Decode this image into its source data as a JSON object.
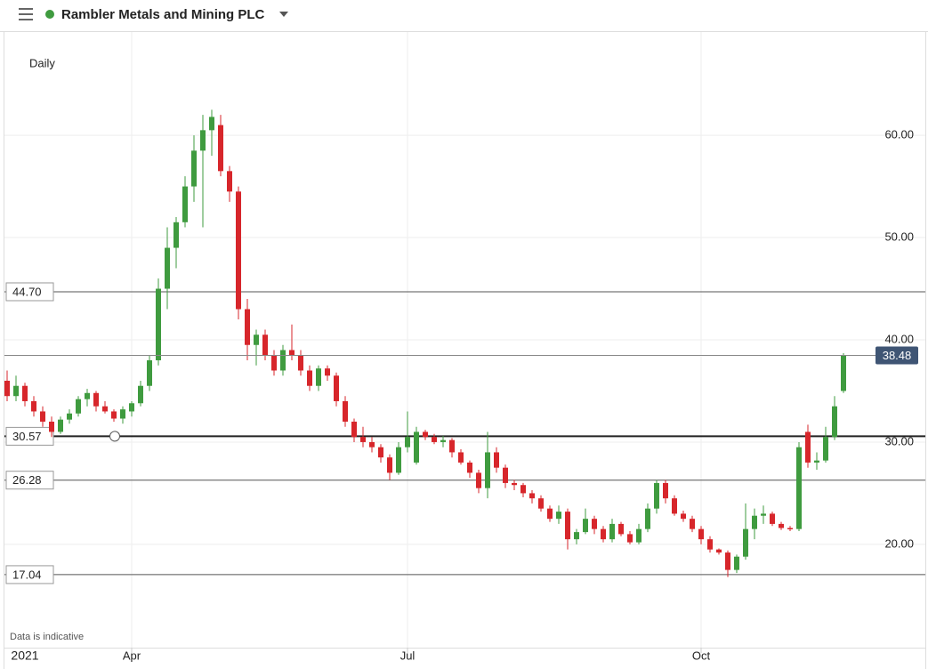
{
  "chart_data": {
    "type": "candlestick",
    "title": "Rambler Metals and Mining PLC",
    "interval": "Daily",
    "note": "Data is indicative",
    "categories": [
      null,
      null,
      "2021",
      null,
      null,
      null,
      null,
      null,
      null,
      null,
      null,
      null,
      null,
      null,
      "Apr",
      null,
      null,
      null,
      null,
      null,
      null,
      null,
      null,
      null,
      null,
      null,
      null,
      null,
      null,
      null,
      null,
      null,
      null,
      null,
      null,
      null,
      null,
      null,
      null,
      null,
      null,
      null,
      null,
      null,
      null,
      "Jul",
      null,
      null,
      null,
      null,
      null,
      null,
      null,
      null,
      null,
      null,
      null,
      null,
      null,
      null,
      null,
      null,
      null,
      null,
      null,
      null,
      null,
      null,
      null,
      null,
      null,
      null,
      null,
      null,
      null,
      null,
      null,
      null,
      "Oct",
      null,
      null,
      null,
      null,
      null,
      null,
      null,
      null,
      null,
      null,
      null,
      null,
      null,
      null,
      null,
      null
    ],
    "ohlc": [
      [
        36,
        37,
        34,
        34.5
      ],
      [
        34.5,
        36.5,
        34,
        35.5
      ],
      [
        35.5,
        35.8,
        33.5,
        34
      ],
      [
        34,
        34.5,
        32.5,
        33
      ],
      [
        33,
        33.5,
        31.5,
        32
      ],
      [
        32,
        32.5,
        30.5,
        31
      ],
      [
        31,
        32.5,
        30.8,
        32.2
      ],
      [
        32.2,
        33.2,
        31.8,
        32.8
      ],
      [
        32.8,
        34.5,
        32.5,
        34.2
      ],
      [
        34.2,
        35.2,
        33.5,
        34.8
      ],
      [
        34.8,
        35,
        33,
        33.5
      ],
      [
        33.5,
        34,
        32.8,
        33
      ],
      [
        33,
        33.2,
        32,
        32.3
      ],
      [
        32.3,
        33.5,
        31.8,
        33.2
      ],
      [
        33,
        34,
        32.5,
        33.8
      ],
      [
        33.8,
        36,
        33.5,
        35.5
      ],
      [
        35.5,
        38.5,
        35,
        38
      ],
      [
        38,
        46,
        37.5,
        45
      ],
      [
        45,
        51,
        43,
        49
      ],
      [
        49,
        52,
        47,
        51.5
      ],
      [
        51.5,
        56,
        51,
        55
      ],
      [
        55,
        60,
        53.5,
        58.5
      ],
      [
        58.5,
        62,
        51,
        60.5
      ],
      [
        60.5,
        62.5,
        58,
        61.8
      ],
      [
        61,
        62,
        56,
        56.5
      ],
      [
        56.5,
        57,
        53.5,
        54.5
      ],
      [
        54.5,
        55,
        42,
        43
      ],
      [
        43,
        44,
        38,
        39.5
      ],
      [
        39.5,
        41,
        37.5,
        40.5
      ],
      [
        40.5,
        41,
        38,
        38.5
      ],
      [
        38.5,
        39,
        36.5,
        37
      ],
      [
        37,
        39.5,
        36.5,
        39
      ],
      [
        39,
        41.5,
        38,
        38.5
      ],
      [
        38.5,
        39,
        36.5,
        37
      ],
      [
        37,
        37.5,
        35,
        35.5
      ],
      [
        35.5,
        37.5,
        35,
        37.2
      ],
      [
        37.2,
        37.5,
        36,
        36.5
      ],
      [
        36.5,
        36.8,
        33.5,
        34
      ],
      [
        34,
        34.5,
        31.5,
        32
      ],
      [
        32,
        32.3,
        30,
        30.5
      ],
      [
        30.5,
        31.5,
        29.5,
        30
      ],
      [
        30,
        30.5,
        29,
        29.5
      ],
      [
        29.5,
        29.8,
        28,
        28.5
      ],
      [
        28.5,
        28.8,
        26.3,
        27
      ],
      [
        27,
        30,
        26.8,
        29.5
      ],
      [
        29.5,
        33,
        29,
        30.5
      ],
      [
        28,
        31.5,
        27.8,
        31
      ],
      [
        31,
        31.2,
        30.2,
        30.5
      ],
      [
        30.5,
        30.8,
        29.8,
        30
      ],
      [
        30,
        30.6,
        29.5,
        30.2
      ],
      [
        30.2,
        30.4,
        28.5,
        29
      ],
      [
        29,
        29.3,
        27.8,
        28
      ],
      [
        28,
        28.2,
        26.5,
        27
      ],
      [
        27,
        27.3,
        25,
        25.5
      ],
      [
        25.5,
        31,
        24.5,
        29
      ],
      [
        29,
        29.5,
        27,
        27.5
      ],
      [
        27.5,
        27.8,
        25.5,
        26
      ],
      [
        26,
        26.3,
        25.3,
        25.8
      ],
      [
        25.8,
        26,
        24.6,
        25
      ],
      [
        25,
        25.3,
        24,
        24.5
      ],
      [
        24.5,
        24.8,
        23.2,
        23.5
      ],
      [
        23.5,
        23.8,
        22.2,
        22.5
      ],
      [
        22.5,
        23.8,
        22,
        23.2
      ],
      [
        23.2,
        23.5,
        19.5,
        20.5
      ],
      [
        20.5,
        21.5,
        20,
        21.2
      ],
      [
        21.2,
        23.5,
        21,
        22.5
      ],
      [
        22.5,
        22.8,
        21,
        21.5
      ],
      [
        21.5,
        21.8,
        20.2,
        20.5
      ],
      [
        20.5,
        22.5,
        20.2,
        22
      ],
      [
        22,
        22.2,
        20.8,
        21
      ],
      [
        21,
        21.3,
        20,
        20.2
      ],
      [
        20.2,
        22,
        20,
        21.5
      ],
      [
        21.5,
        24,
        21.2,
        23.5
      ],
      [
        23.5,
        26.3,
        23,
        26
      ],
      [
        26,
        26.3,
        24,
        24.5
      ],
      [
        24.5,
        24.8,
        22.8,
        23
      ],
      [
        23,
        23.3,
        22.2,
        22.5
      ],
      [
        22.5,
        22.8,
        21.2,
        21.5
      ],
      [
        21.5,
        21.8,
        20,
        20.5
      ],
      [
        20.5,
        20.8,
        19.2,
        19.5
      ],
      [
        19.5,
        19.6,
        19,
        19.2
      ],
      [
        19.2,
        19.4,
        16.8,
        17.5
      ],
      [
        17.5,
        19,
        17.2,
        18.8
      ],
      [
        18.8,
        24,
        18.5,
        21.5
      ],
      [
        21.5,
        23.5,
        20.5,
        22.8
      ],
      [
        22.8,
        23.8,
        22,
        23
      ],
      [
        23,
        23.2,
        21.8,
        22
      ],
      [
        22,
        22.2,
        21.4,
        21.6
      ],
      [
        21.6,
        21.8,
        21.3,
        21.5
      ],
      [
        21.5,
        30,
        21.3,
        29.5
      ],
      [
        31,
        31.7,
        27.5,
        28
      ],
      [
        28,
        29,
        27.3,
        28.2
      ],
      [
        28.2,
        31.5,
        28,
        30.5
      ],
      [
        30.5,
        34.5,
        30.2,
        33.5
      ],
      [
        35,
        38.7,
        34.8,
        38.48
      ]
    ],
    "up_color": "#3f9b3f",
    "down_color": "#d7262b",
    "ylim": [
      9.9,
      70.1
    ],
    "yticks": [
      {
        "value": 20,
        "label": "20.00"
      },
      {
        "value": 30,
        "label": "30.00"
      },
      {
        "value": 40,
        "label": "40.00"
      },
      {
        "value": 50,
        "label": "50.00"
      },
      {
        "value": 60,
        "label": "60.00"
      }
    ],
    "levels": [
      {
        "value": 44.7,
        "label": "44.70"
      },
      30.57,
      26.28,
      17.04
    ],
    "last_price": 38.48,
    "grid": true
  }
}
